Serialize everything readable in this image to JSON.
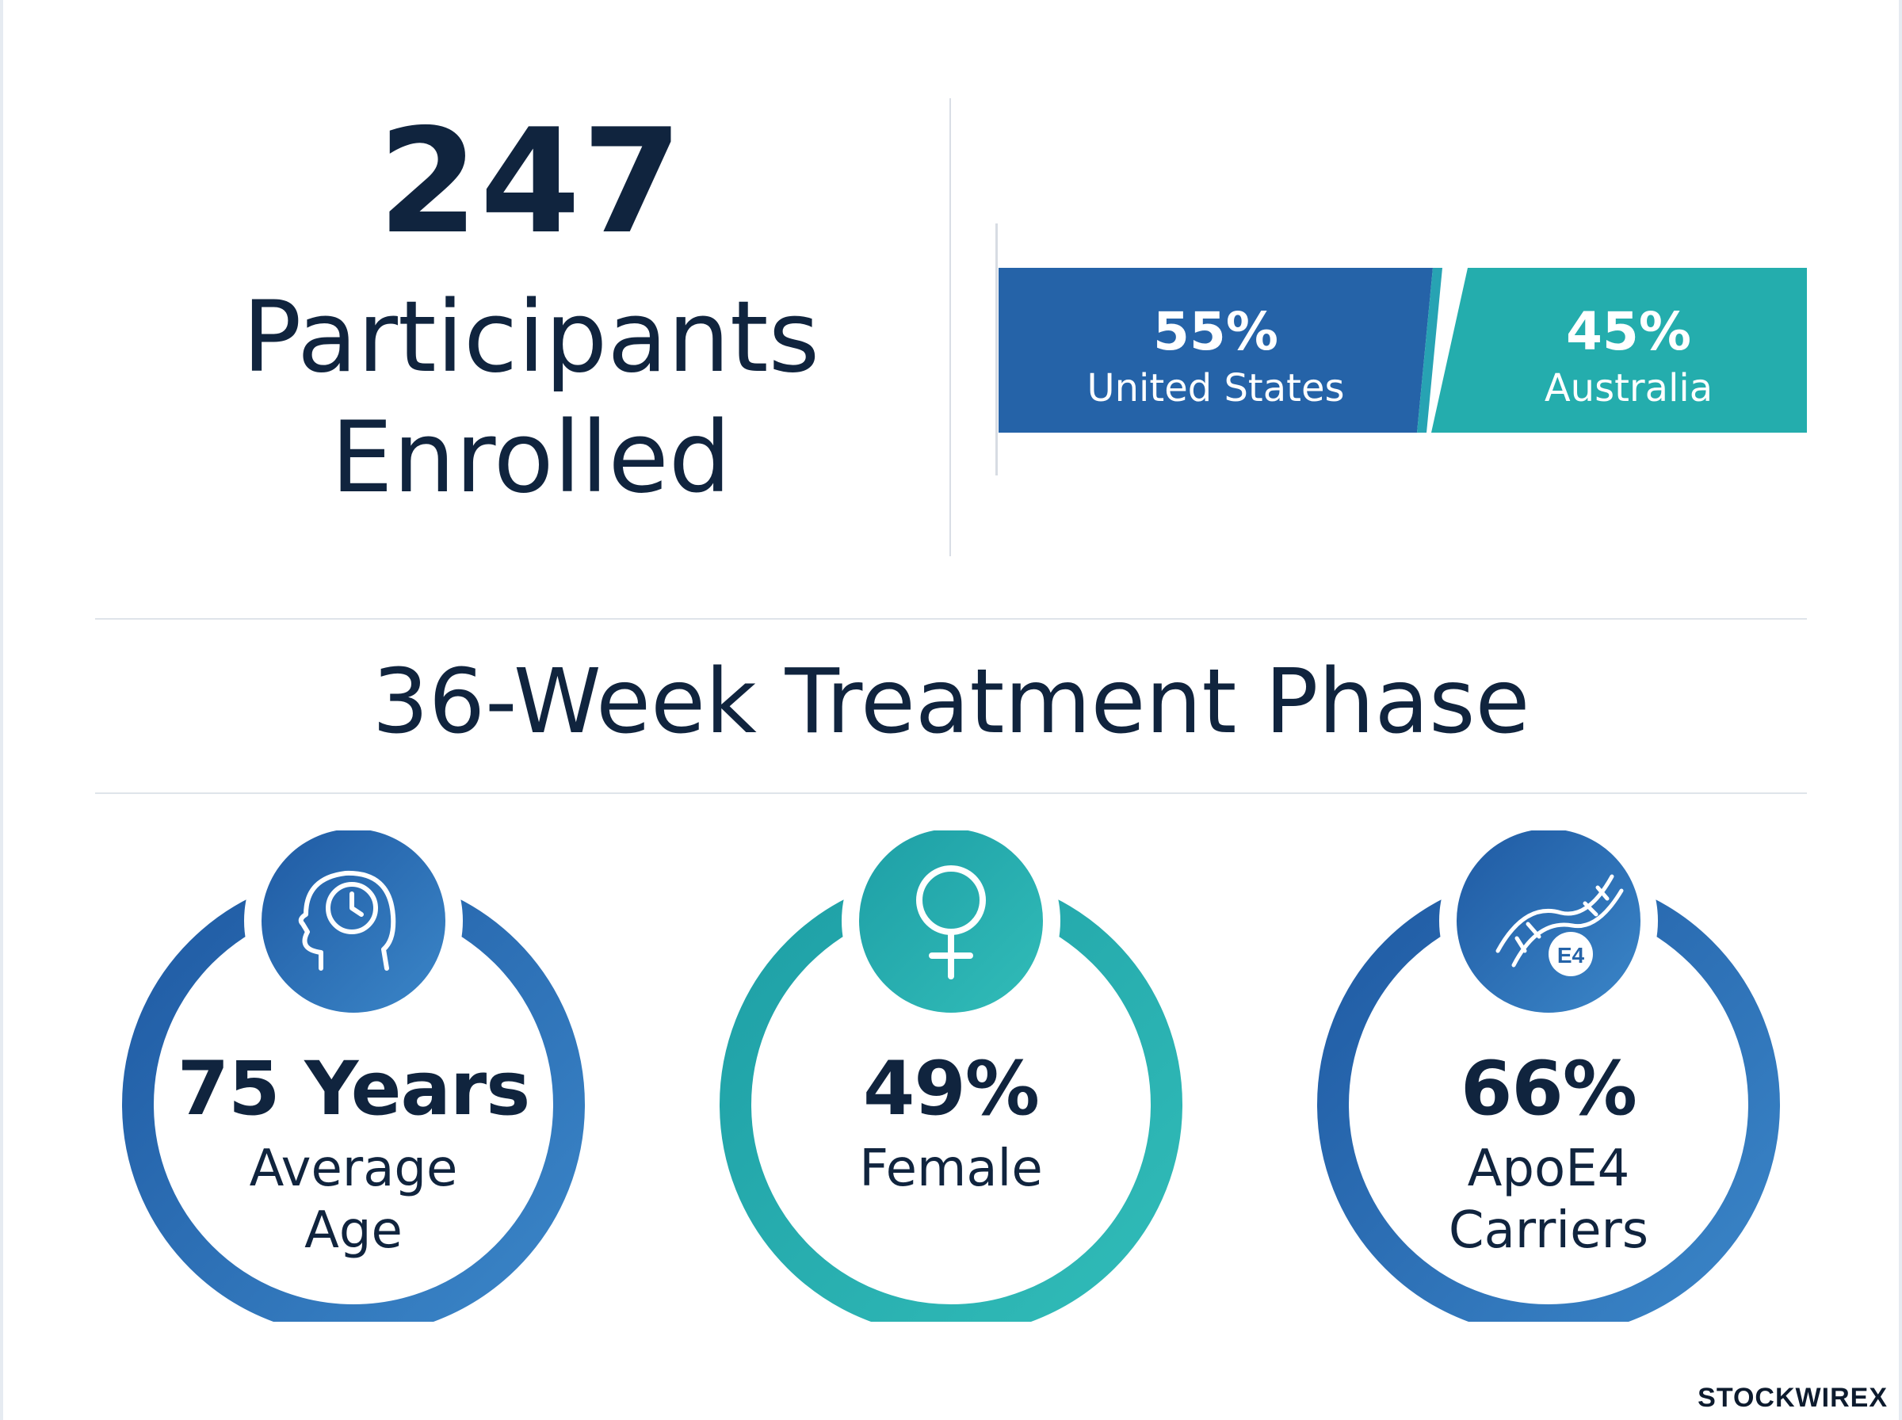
{
  "enrollment": {
    "count": "247",
    "label_line1": "Participants",
    "label_line2": "Enrolled"
  },
  "country_split": {
    "segments": [
      {
        "percent_label": "55%",
        "country": "United States",
        "share": 0.55,
        "color": "#2563a8"
      },
      {
        "percent_label": "45%",
        "country": "Australia",
        "share": 0.45,
        "color": "#24adad"
      }
    ]
  },
  "phase": {
    "title": "36-Week Treatment Phase"
  },
  "stats": [
    {
      "value": "75 Years",
      "label_line1": "Average",
      "label_line2": "Age",
      "icon": "head-clock-icon",
      "color": "#2563a8"
    },
    {
      "value": "49%",
      "label_line1": "Female",
      "label_line2": "",
      "icon": "female-symbol-icon",
      "color": "#24adad"
    },
    {
      "value": "66%",
      "label_line1": "ApoE4",
      "label_line2": "Carriers",
      "icon": "dna-e4-icon",
      "icon_text": "E4",
      "color": "#2563a8"
    }
  ],
  "brand": {
    "name": "STOCKWIRE",
    "mark": "X"
  },
  "colors": {
    "navy_text": "#10243e",
    "blue": "#2563a8",
    "teal": "#24adad",
    "divider": "#dfe4ea"
  }
}
